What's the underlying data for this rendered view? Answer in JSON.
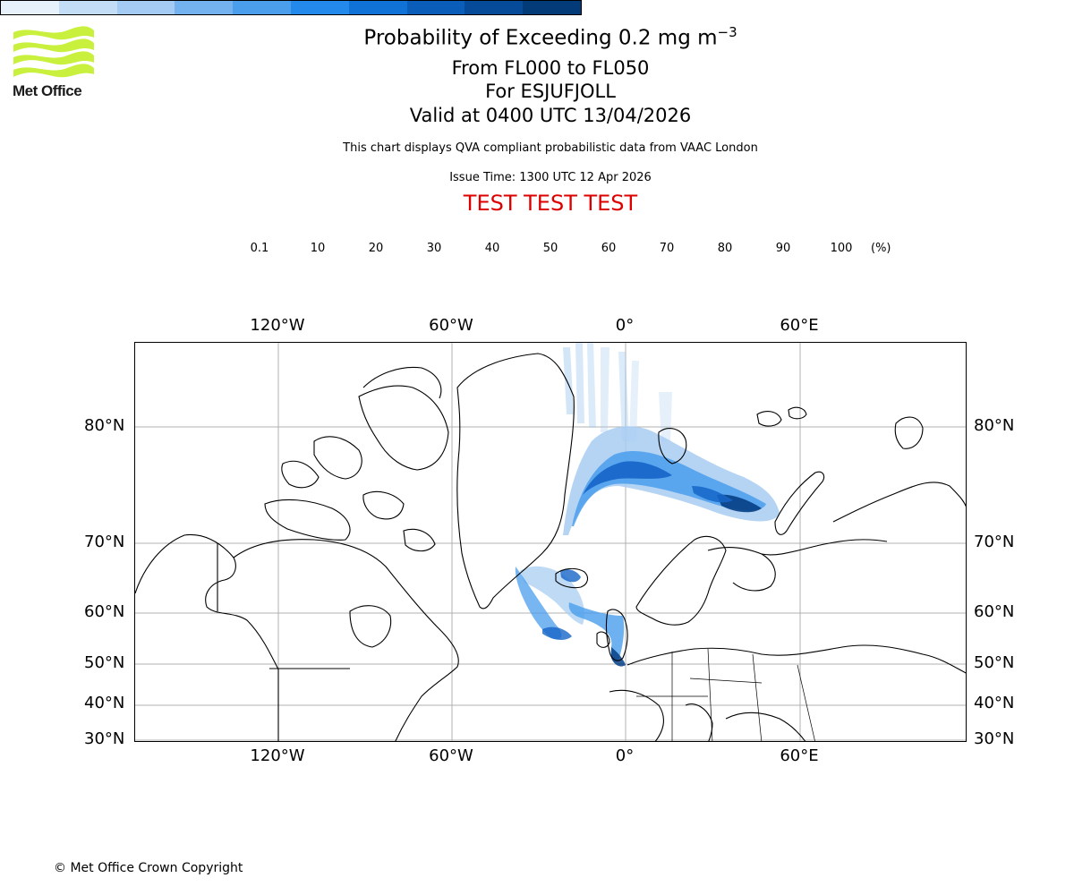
{
  "branding": {
    "logo_text": "Met Office",
    "logo_color": "#c8f03c",
    "copyright": "© Met Office Crown Copyright"
  },
  "header": {
    "title_main": "Probability of Exceeding 0.2 mg m",
    "title_superscript": "−3",
    "flight_levels": "From FL000 to FL050",
    "volcano": "For ESJUFJOLL",
    "valid_time": "Valid at 0400 UTC 13/04/2026",
    "disclaimer": "This chart displays QVA compliant probabilistic data from VAAC London",
    "issue_time": "Issue Time: 1300 UTC 12 Apr 2026",
    "test_banner": "TEST TEST TEST",
    "test_banner_color": "#dd0000"
  },
  "colorbar": {
    "unit": "(%)",
    "ticks": [
      "0.1",
      "10",
      "20",
      "30",
      "40",
      "50",
      "60",
      "70",
      "80",
      "90",
      "100"
    ],
    "colors": [
      "#e6f1fc",
      "#c4ddf6",
      "#a3cbf3",
      "#73b2ee",
      "#4a9eec",
      "#2389ea",
      "#1072d6",
      "#0a5db9",
      "#064b99",
      "#033a78",
      "#012a58"
    ]
  },
  "map": {
    "lon_ticks": [
      "120°W",
      "60°W",
      "0°",
      "60°E"
    ],
    "lat_ticks": [
      "80°N",
      "70°N",
      "60°N",
      "50°N",
      "40°N",
      "30°N"
    ],
    "plume_colors": {
      "light": "#a8cdf2",
      "medium": "#4a9eec",
      "dark": "#1565c8",
      "darkest": "#063f85"
    }
  }
}
